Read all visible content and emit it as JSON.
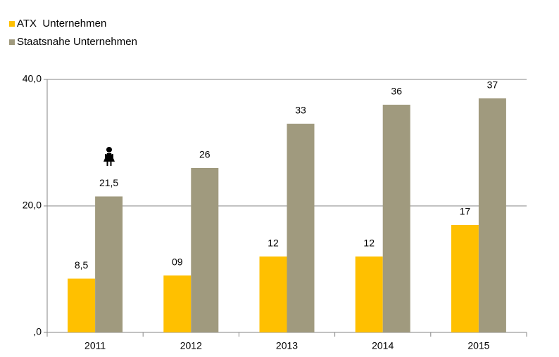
{
  "chart_data": {
    "type": "bar",
    "categories": [
      "2011",
      "2012",
      "2013",
      "2014",
      "2015"
    ],
    "series": [
      {
        "name": "ATX  Unternehmen",
        "color": "#ffc000",
        "values": [
          8.5,
          9,
          12,
          12,
          17
        ],
        "value_labels": [
          "8,5",
          "09",
          "12",
          "12",
          "17"
        ]
      },
      {
        "name": "Staatsnahe Unternehmen",
        "color": "#a09a7e",
        "values": [
          21.5,
          26,
          33,
          36,
          37
        ],
        "value_labels": [
          "21,5",
          "26",
          "33",
          "36",
          "37"
        ]
      }
    ],
    "ylim": [
      0,
      40
    ],
    "yticks": [
      {
        "value": 0,
        "label": ",0"
      },
      {
        "value": 20,
        "label": "20,0"
      },
      {
        "value": 40,
        "label": "40,0"
      }
    ],
    "grid": true,
    "legend": "top-left"
  }
}
